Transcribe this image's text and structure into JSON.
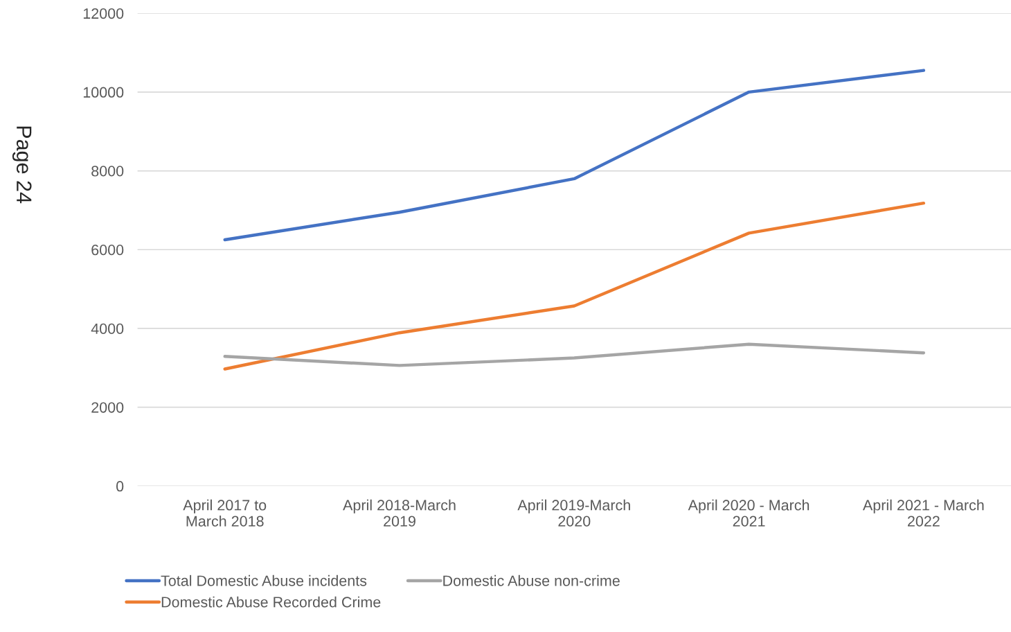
{
  "chart_data": {
    "type": "line",
    "categories": [
      "April 2017 to March 2018",
      "April 2018-March 2019",
      "April 2019-March 2020",
      "April 2020 - March 2021",
      "April 2021 - March 2022"
    ],
    "series": [
      {
        "name": "Total Domestic Abuse incidents",
        "color": "#4472c4",
        "values": [
          6250,
          6950,
          7800,
          10000,
          10550
        ]
      },
      {
        "name": "Domestic Abuse Recorded Crime",
        "color": "#ed7d31",
        "values": [
          2970,
          3890,
          4570,
          6420,
          7180
        ]
      },
      {
        "name": "Domestic Abuse non-crime",
        "color": "#a5a5a5",
        "values": [
          3290,
          3060,
          3250,
          3600,
          3380
        ]
      }
    ],
    "ylim": [
      0,
      12000
    ],
    "yticks": [
      0,
      2000,
      4000,
      6000,
      8000,
      10000,
      12000
    ],
    "grid": "y",
    "legend": "bottom",
    "marker": "none",
    "line_style": "solid",
    "annotations": [
      "Page 24"
    ]
  }
}
